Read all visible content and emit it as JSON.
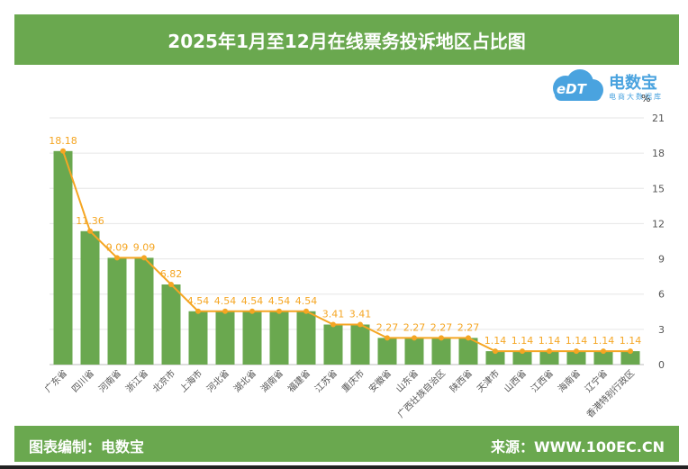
{
  "header": {
    "title": "2025年1月至12月在线票务投诉地区占比图"
  },
  "logo": {
    "cn_name": "电数宝",
    "en_text": "eDT",
    "sub_text": "电商大数据库"
  },
  "footer": {
    "left": "图表编制：电数宝",
    "right": "来源：WWW.100EC.CN"
  },
  "colors": {
    "band": "#6aa84f",
    "bar": "#6aa84f",
    "line": "#f5a623",
    "label": "#f5a623",
    "grid": "#e6e6e6",
    "axis_text": "#555555"
  },
  "chart_data": {
    "type": "bar",
    "title": "2025年1月至12月在线票务投诉地区占比图",
    "unit": "%",
    "categories": [
      "广东省",
      "四川省",
      "河南省",
      "浙江省",
      "北京市",
      "上海市",
      "河北省",
      "湖北省",
      "湖南省",
      "福建省",
      "江苏省",
      "重庆市",
      "安徽省",
      "山东省",
      "广西壮族自治区",
      "陕西省",
      "天津市",
      "山西省",
      "江西省",
      "海南省",
      "辽宁省",
      "香港特别行政区"
    ],
    "values": [
      18.18,
      11.36,
      9.09,
      9.09,
      6.82,
      4.54,
      4.54,
      4.54,
      4.54,
      4.54,
      3.41,
      3.41,
      2.27,
      2.27,
      2.27,
      2.27,
      1.14,
      1.14,
      1.14,
      1.14,
      1.14,
      1.14
    ],
    "y_ticks": [
      "0",
      "3",
      "6",
      "9",
      "12",
      "15",
      "18",
      "21"
    ],
    "ylim": [
      0,
      21
    ],
    "y_axis_position": "right",
    "overlay": "line connecting bar tops",
    "grid": true
  }
}
